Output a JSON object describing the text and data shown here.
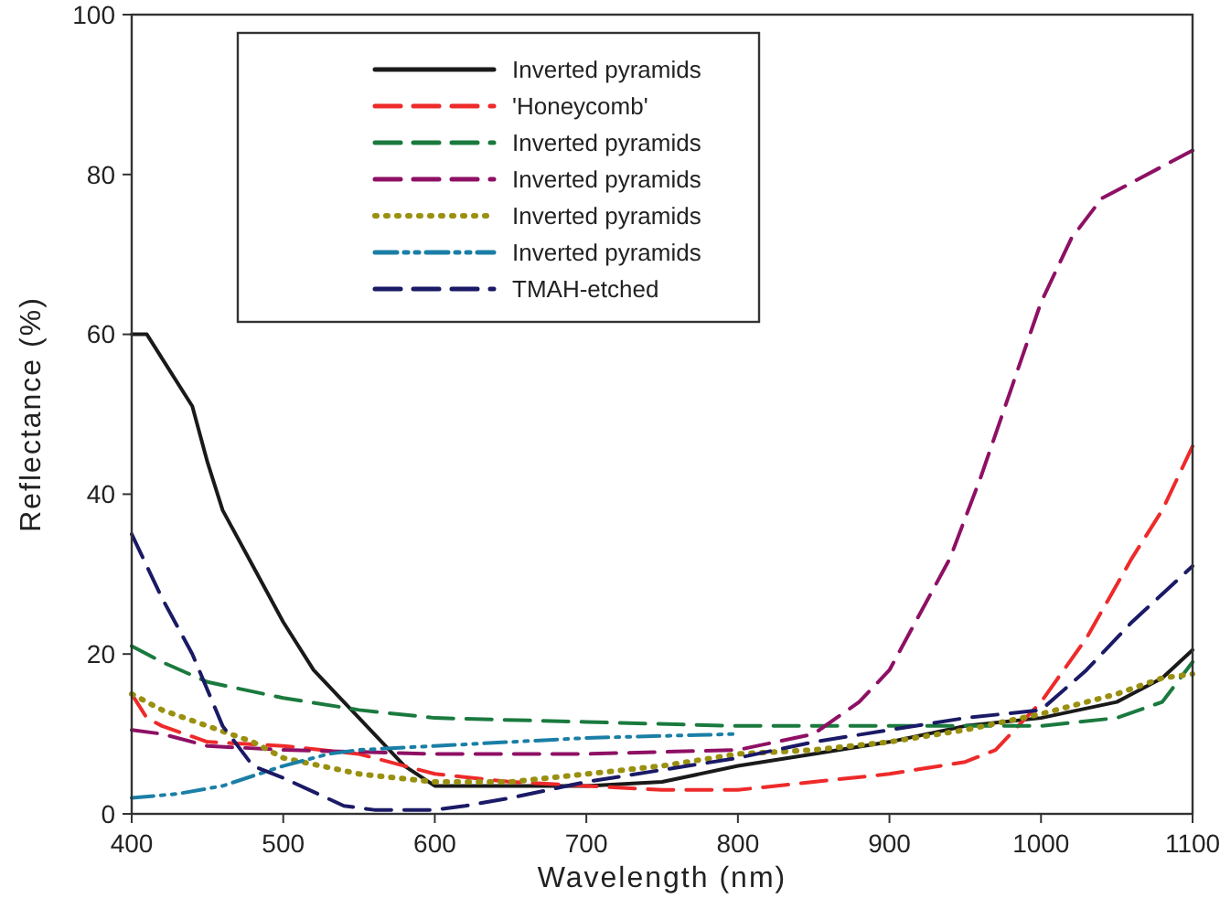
{
  "chart_data": {
    "type": "line",
    "xlabel": "Wavelength (nm)",
    "ylabel": "Reflectance (%)",
    "xlim": [
      400,
      1100
    ],
    "ylim": [
      0,
      100
    ],
    "xticks": [
      400,
      500,
      600,
      700,
      800,
      900,
      1000,
      1100
    ],
    "yticks": [
      0,
      20,
      40,
      60,
      80,
      100
    ],
    "grid": false,
    "legend": "top",
    "marker": "none",
    "series": [
      {
        "name": "Inverted pyramids",
        "color": "#1a1a1a",
        "line_style": "solid",
        "x": [
          400,
          410,
          420,
          440,
          450,
          460,
          480,
          500,
          520,
          550,
          580,
          600,
          700,
          750,
          800,
          850,
          900,
          950,
          1000,
          1050,
          1080,
          1100
        ],
        "values": [
          60,
          60,
          57,
          51,
          44,
          38,
          31,
          24,
          18,
          12,
          6,
          3.5,
          3.5,
          4,
          6,
          7.5,
          9,
          11,
          12,
          14,
          17,
          20.5
        ]
      },
      {
        "name": "'Honeycomb'",
        "color": "#ee2a2a",
        "line_style": "dashed",
        "x": [
          400,
          410,
          420,
          450,
          500,
          550,
          580,
          600,
          650,
          700,
          750,
          800,
          850,
          900,
          950,
          970,
          1000,
          1030,
          1060,
          1080,
          1100
        ],
        "values": [
          15,
          12,
          11,
          9,
          8.5,
          7.5,
          6,
          5,
          4,
          3.5,
          3,
          3,
          4,
          5,
          6.5,
          8,
          14,
          22,
          32,
          38,
          46
        ]
      },
      {
        "name": "Inverted pyramids",
        "color": "#1a7a3e",
        "line_style": "dashed",
        "x": [
          400,
          420,
          450,
          500,
          550,
          600,
          700,
          800,
          900,
          1000,
          1050,
          1080,
          1100
        ],
        "values": [
          21,
          19,
          16.5,
          14.5,
          13,
          12,
          11.5,
          11,
          11,
          11,
          12,
          14,
          19
        ]
      },
      {
        "name": "Inverted pyramids",
        "color": "#8e1064",
        "line_style": "dashed",
        "x": [
          400,
          420,
          450,
          500,
          600,
          700,
          800,
          850,
          880,
          900,
          920,
          940,
          960,
          980,
          1000,
          1020,
          1040,
          1060,
          1080,
          1100
        ],
        "values": [
          10.5,
          10,
          8.5,
          8,
          7.5,
          7.5,
          8,
          10,
          14,
          18,
          25,
          32,
          42,
          53,
          64,
          72,
          77,
          79,
          81,
          83
        ]
      },
      {
        "name": "Inverted pyramids",
        "color": "#9a9010",
        "line_style": "dotted",
        "x": [
          400,
          420,
          450,
          480,
          500,
          550,
          600,
          650,
          700,
          750,
          800,
          850,
          900,
          950,
          1000,
          1050,
          1080,
          1100
        ],
        "values": [
          15,
          13,
          11,
          9,
          7,
          5,
          4,
          4,
          5,
          6,
          7.5,
          8,
          9,
          10.5,
          12.5,
          15,
          17,
          17.5
        ]
      },
      {
        "name": "Inverted pyramids",
        "color": "#1a7fa6",
        "line_style": "dashdot",
        "x": [
          400,
          430,
          460,
          500,
          530,
          550,
          600,
          650,
          700,
          800
        ],
        "values": [
          2,
          2.5,
          3.5,
          6,
          7.5,
          8,
          8.5,
          9,
          9.5,
          10
        ]
      },
      {
        "name": "TMAH-etched",
        "color": "#1a1a66",
        "line_style": "dashed",
        "x": [
          400,
          420,
          440,
          460,
          480,
          500,
          540,
          560,
          600,
          620,
          650,
          700,
          750,
          800,
          850,
          900,
          950,
          1000,
          1030,
          1060,
          1100
        ],
        "values": [
          35,
          27,
          20,
          11,
          6,
          4.5,
          1,
          0.5,
          0.5,
          1,
          2,
          4,
          5.5,
          7,
          9,
          10.5,
          12,
          13,
          18,
          24,
          31
        ]
      }
    ]
  }
}
